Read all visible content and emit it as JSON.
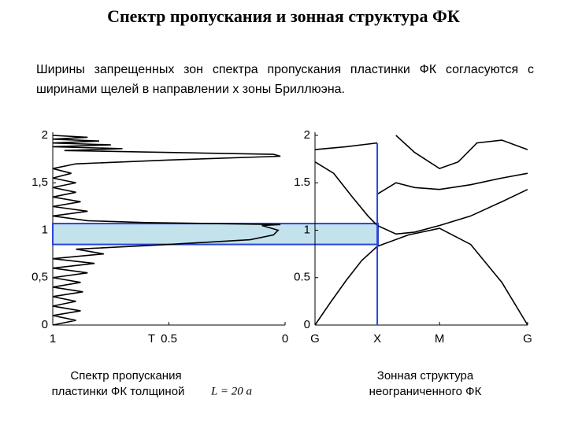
{
  "title": "Спектр пропускания и зонная структура ФК",
  "text": "Ширины запрещенных зон спектра пропускания пластинки ФК согласуются с ширинами щелей в направлении x зоны Бриллюэна.",
  "chart_data": [
    {
      "type": "line",
      "caption": "Спектр пропускания пластинки ФК толщиной",
      "caption_formula": "L = 20 a",
      "xlabel": "T",
      "xlim": [
        1,
        0
      ],
      "xticks": [
        1,
        0.5,
        0
      ],
      "ylim": [
        0,
        2
      ],
      "yticks": [
        0,
        {
          "value": 0.5,
          "label": "0,5"
        },
        1,
        {
          "value": 1.5,
          "label": "1,5"
        },
        2
      ],
      "band_gap": [
        0.85,
        1.07
      ],
      "series": [
        {
          "color": "#000000",
          "x": [
            1,
            0.9,
            1,
            0.88,
            1,
            0.9,
            1,
            0.87,
            1,
            0.88,
            1,
            0.85,
            1,
            0.82,
            1,
            0.78,
            0.9,
            0.5,
            0.15,
            0.05,
            0.03,
            0.1,
            0.02,
            0.6,
            0.85,
            1,
            0.85,
            1,
            0.88,
            1,
            0.9,
            1,
            0.9,
            1,
            0.92,
            1,
            0.9,
            0.5,
            0.02,
            0.05,
            0.5,
            0.95,
            0.7,
            1,
            0.75,
            1,
            0.8,
            1,
            0.85,
            1
          ],
          "values": [
            0,
            0.05,
            0.1,
            0.15,
            0.2,
            0.25,
            0.3,
            0.35,
            0.4,
            0.45,
            0.5,
            0.55,
            0.6,
            0.65,
            0.7,
            0.75,
            0.8,
            0.85,
            0.9,
            0.95,
            1.0,
            1.05,
            1.06,
            1.08,
            1.1,
            1.15,
            1.2,
            1.25,
            1.3,
            1.35,
            1.4,
            1.45,
            1.5,
            1.55,
            1.6,
            1.65,
            1.7,
            1.74,
            1.78,
            1.8,
            1.82,
            1.84,
            1.86,
            1.88,
            1.9,
            1.92,
            1.94,
            1.96,
            1.98,
            2
          ]
        }
      ]
    },
    {
      "type": "line",
      "caption": "Зонная структура неограниченного ФК",
      "xlim": [
        0,
        3.414
      ],
      "xticks": [
        {
          "value": 0,
          "label": "G"
        },
        {
          "value": 1,
          "label": "X"
        },
        {
          "value": 2,
          "label": "M"
        },
        {
          "value": 3.414,
          "label": "G"
        }
      ],
      "ylim": [
        0,
        2
      ],
      "yticks": [
        0,
        0.5,
        1,
        1.5,
        2
      ],
      "series": [
        {
          "color": "#000000",
          "x": [
            0,
            0.25,
            0.5,
            0.75,
            1
          ],
          "values": [
            0,
            0.24,
            0.47,
            0.68,
            0.83
          ]
        },
        {
          "color": "#000000",
          "x": [
            1,
            1.5,
            2,
            2.5,
            3,
            3.414
          ],
          "values": [
            0.83,
            0.95,
            1.02,
            0.85,
            0.45,
            0
          ]
        },
        {
          "color": "#000000",
          "x": [
            0,
            0.3,
            0.6,
            0.85,
            1,
            1.3,
            1.6,
            2,
            2.5,
            3,
            3.414
          ],
          "values": [
            1.72,
            1.6,
            1.35,
            1.15,
            1.05,
            0.96,
            0.98,
            1.05,
            1.15,
            1.3,
            1.43
          ]
        },
        {
          "color": "#000000",
          "x": [
            1,
            1.3,
            1.6,
            2,
            2.5,
            3,
            3.414
          ],
          "values": [
            1.38,
            1.5,
            1.45,
            1.43,
            1.48,
            1.55,
            1.6
          ]
        },
        {
          "color": "#000000",
          "x": [
            0,
            0.5,
            1
          ],
          "values": [
            1.85,
            1.88,
            1.92
          ]
        },
        {
          "color": "#000000",
          "x": [
            1.3,
            1.6,
            2,
            2.3,
            2.6,
            3,
            3.414
          ],
          "values": [
            2,
            1.82,
            1.65,
            1.72,
            1.92,
            1.95,
            1.85
          ]
        }
      ]
    }
  ]
}
